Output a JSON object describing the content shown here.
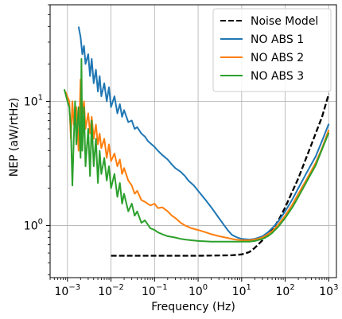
{
  "chart_data": {
    "type": "line",
    "xlabel": "Frequency (Hz)",
    "ylabel": "NEP (aW/rtHz)",
    "x_scale": "log",
    "y_scale": "log",
    "xlim": [
      0.0004,
      1500
    ],
    "ylim": [
      0.38,
      60
    ],
    "grid": true,
    "legend_position": "top-right",
    "x_ticks": [
      {
        "value": 0.001,
        "base": "10",
        "exp": "−3"
      },
      {
        "value": 0.01,
        "base": "10",
        "exp": "−2"
      },
      {
        "value": 0.1,
        "base": "10",
        "exp": "−1"
      },
      {
        "value": 1,
        "base": "10",
        "exp": "0"
      },
      {
        "value": 10,
        "base": "10",
        "exp": "1"
      },
      {
        "value": 100,
        "base": "10",
        "exp": "2"
      },
      {
        "value": 1000,
        "base": "10",
        "exp": "3"
      }
    ],
    "y_ticks": [
      {
        "value": 1,
        "base": "10",
        "exp": "0"
      },
      {
        "value": 10,
        "base": "10",
        "exp": "1"
      }
    ],
    "series": [
      {
        "name": "Noise Model",
        "color": "#000000",
        "dash": "dashed",
        "points": [
          [
            0.01,
            0.57
          ],
          [
            1,
            0.57
          ],
          [
            6,
            0.575
          ],
          [
            10,
            0.585
          ],
          [
            15,
            0.61
          ],
          [
            20,
            0.66
          ],
          [
            30,
            0.76
          ],
          [
            50,
            0.92
          ],
          [
            70,
            1.1
          ],
          [
            100,
            1.4
          ],
          [
            200,
            2.4
          ],
          [
            400,
            4.5
          ],
          [
            700,
            7.5
          ],
          [
            1000,
            11.5
          ]
        ]
      },
      {
        "name": "NO ABS 1",
        "color": "#1f77b4",
        "dash": "solid",
        "points": [
          [
            0.0018,
            40
          ],
          [
            0.002,
            33
          ],
          [
            0.0022,
            24
          ],
          [
            0.0024,
            28
          ],
          [
            0.0026,
            20
          ],
          [
            0.003,
            24
          ],
          [
            0.0033,
            16
          ],
          [
            0.0036,
            22
          ],
          [
            0.004,
            14
          ],
          [
            0.0045,
            18
          ],
          [
            0.005,
            12
          ],
          [
            0.0055,
            16
          ],
          [
            0.006,
            11
          ],
          [
            0.007,
            14
          ],
          [
            0.008,
            10
          ],
          [
            0.009,
            13
          ],
          [
            0.01,
            9
          ],
          [
            0.012,
            11
          ],
          [
            0.014,
            8
          ],
          [
            0.016,
            9.5
          ],
          [
            0.018,
            7.5
          ],
          [
            0.02,
            8.5
          ],
          [
            0.025,
            6.8
          ],
          [
            0.03,
            7
          ],
          [
            0.035,
            6
          ],
          [
            0.04,
            6.2
          ],
          [
            0.05,
            5.5
          ],
          [
            0.06,
            5.2
          ],
          [
            0.07,
            4.8
          ],
          [
            0.08,
            4.6
          ],
          [
            0.1,
            4.3
          ],
          [
            0.12,
            4
          ],
          [
            0.15,
            3.7
          ],
          [
            0.2,
            3.4
          ],
          [
            0.25,
            3.1
          ],
          [
            0.3,
            2.9
          ],
          [
            0.4,
            2.7
          ],
          [
            0.5,
            2.5
          ],
          [
            0.6,
            2.3
          ],
          [
            0.8,
            2.1
          ],
          [
            1,
            1.9
          ],
          [
            1.5,
            1.6
          ],
          [
            2,
            1.4
          ],
          [
            3,
            1.15
          ],
          [
            4,
            1
          ],
          [
            5,
            0.9
          ],
          [
            6,
            0.84
          ],
          [
            8,
            0.8
          ],
          [
            10,
            0.78
          ],
          [
            15,
            0.77
          ],
          [
            20,
            0.78
          ],
          [
            30,
            0.82
          ],
          [
            40,
            0.88
          ],
          [
            50,
            0.95
          ],
          [
            70,
            1.08
          ],
          [
            100,
            1.3
          ],
          [
            150,
            1.65
          ],
          [
            200,
            2
          ],
          [
            300,
            2.6
          ],
          [
            500,
            3.6
          ],
          [
            700,
            4.8
          ],
          [
            1000,
            6.6
          ]
        ]
      },
      {
        "name": "NO ABS 2",
        "color": "#ff7f0e",
        "dash": "solid",
        "points": [
          [
            0.0009,
            12
          ],
          [
            0.0011,
            10
          ],
          [
            0.0012,
            5
          ],
          [
            0.0013,
            10
          ],
          [
            0.0014,
            6.5
          ],
          [
            0.0016,
            9
          ],
          [
            0.0018,
            4
          ],
          [
            0.002,
            15
          ],
          [
            0.0022,
            8
          ],
          [
            0.0024,
            10
          ],
          [
            0.0026,
            6
          ],
          [
            0.003,
            8
          ],
          [
            0.0033,
            5.5
          ],
          [
            0.0036,
            7.5
          ],
          [
            0.004,
            5
          ],
          [
            0.0045,
            6.5
          ],
          [
            0.005,
            4.5
          ],
          [
            0.0055,
            5.5
          ],
          [
            0.006,
            4.2
          ],
          [
            0.007,
            5
          ],
          [
            0.008,
            3.5
          ],
          [
            0.009,
            4.5
          ],
          [
            0.01,
            3.3
          ],
          [
            0.012,
            3.8
          ],
          [
            0.014,
            3
          ],
          [
            0.016,
            3.4
          ],
          [
            0.018,
            2.6
          ],
          [
            0.02,
            2.9
          ],
          [
            0.025,
            2.3
          ],
          [
            0.03,
            2.1
          ],
          [
            0.035,
            1.8
          ],
          [
            0.04,
            1.9
          ],
          [
            0.05,
            1.6
          ],
          [
            0.06,
            1.55
          ],
          [
            0.08,
            1.45
          ],
          [
            0.1,
            1.5
          ],
          [
            0.12,
            1.38
          ],
          [
            0.15,
            1.4
          ],
          [
            0.2,
            1.3
          ],
          [
            0.25,
            1.2
          ],
          [
            0.3,
            1.15
          ],
          [
            0.4,
            1.05
          ],
          [
            0.5,
            1
          ],
          [
            0.7,
            0.95
          ],
          [
            1,
            0.92
          ],
          [
            1.5,
            0.88
          ],
          [
            2,
            0.85
          ],
          [
            3,
            0.82
          ],
          [
            5,
            0.79
          ],
          [
            7,
            0.77
          ],
          [
            10,
            0.76
          ],
          [
            15,
            0.76
          ],
          [
            20,
            0.77
          ],
          [
            30,
            0.8
          ],
          [
            40,
            0.85
          ],
          [
            50,
            0.9
          ],
          [
            70,
            1.02
          ],
          [
            100,
            1.2
          ],
          [
            150,
            1.5
          ],
          [
            200,
            1.8
          ],
          [
            300,
            2.3
          ],
          [
            500,
            3.2
          ],
          [
            700,
            4.2
          ],
          [
            1000,
            5.9
          ]
        ]
      },
      {
        "name": "NO ABS 3",
        "color": "#2ca02c",
        "dash": "solid",
        "points": [
          [
            0.00085,
            12.5
          ],
          [
            0.001,
            10
          ],
          [
            0.0011,
            9
          ],
          [
            0.0012,
            6
          ],
          [
            0.0013,
            2.1
          ],
          [
            0.0014,
            5
          ],
          [
            0.0015,
            10
          ],
          [
            0.0016,
            4.5
          ],
          [
            0.0018,
            9
          ],
          [
            0.002,
            3.5
          ],
          [
            0.0021,
            22
          ],
          [
            0.0022,
            4
          ],
          [
            0.0024,
            9
          ],
          [
            0.0026,
            3
          ],
          [
            0.003,
            6
          ],
          [
            0.0033,
            2.5
          ],
          [
            0.0036,
            7
          ],
          [
            0.004,
            3
          ],
          [
            0.0045,
            5
          ],
          [
            0.005,
            2.2
          ],
          [
            0.0055,
            4
          ],
          [
            0.006,
            2.6
          ],
          [
            0.007,
            3.5
          ],
          [
            0.008,
            2.3
          ],
          [
            0.009,
            3
          ],
          [
            0.01,
            2
          ],
          [
            0.012,
            2.6
          ],
          [
            0.014,
            1.7
          ],
          [
            0.016,
            2.2
          ],
          [
            0.018,
            1.5
          ],
          [
            0.02,
            1.8
          ],
          [
            0.025,
            1.3
          ],
          [
            0.03,
            1.5
          ],
          [
            0.035,
            1.2
          ],
          [
            0.04,
            1.3
          ],
          [
            0.05,
            1.05
          ],
          [
            0.06,
            1.1
          ],
          [
            0.08,
            0.95
          ],
          [
            0.1,
            0.92
          ],
          [
            0.12,
            0.88
          ],
          [
            0.15,
            0.85
          ],
          [
            0.2,
            0.82
          ],
          [
            0.3,
            0.8
          ],
          [
            0.4,
            0.78
          ],
          [
            0.5,
            0.77
          ],
          [
            0.7,
            0.76
          ],
          [
            1,
            0.75
          ],
          [
            2,
            0.74
          ],
          [
            3,
            0.74
          ],
          [
            5,
            0.74
          ],
          [
            8,
            0.74
          ],
          [
            10,
            0.74
          ],
          [
            15,
            0.74
          ],
          [
            20,
            0.75
          ],
          [
            30,
            0.78
          ],
          [
            40,
            0.82
          ],
          [
            50,
            0.87
          ],
          [
            70,
            0.98
          ],
          [
            100,
            1.15
          ],
          [
            150,
            1.42
          ],
          [
            200,
            1.7
          ],
          [
            300,
            2.2
          ],
          [
            500,
            3.05
          ],
          [
            700,
            4.1
          ],
          [
            1000,
            5.6
          ]
        ]
      }
    ]
  }
}
